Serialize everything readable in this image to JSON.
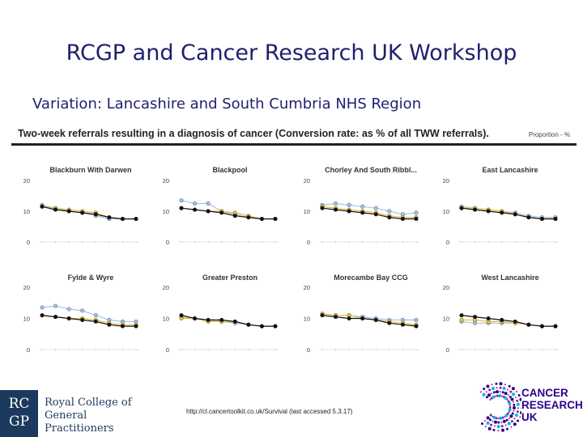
{
  "slide": {
    "title": "RCGP and Cancer Research UK Workshop",
    "subtitle": "Variation: Lancashire and South Cumbria NHS Region"
  },
  "chart_header": {
    "title": "Two-week referrals resulting in a diagnosis of cancer (Conversion rate: as % of all TWW referrals).",
    "proportion_label": "Proportion - %"
  },
  "footer": {
    "url": "http://cl.cancertoolkit.co.uk/Survival (last accessed 5.3.17)"
  },
  "logos": {
    "rcgp_letters": [
      "RC",
      "GP"
    ],
    "rcgp_name_line1": "Royal College of",
    "rcgp_name_line2": "General Practitioners",
    "cruk_line1": "CANCER",
    "cruk_line2": "RESEARCH",
    "cruk_line3": "UK"
  },
  "colors": {
    "black_series": "#111111",
    "blue_series": "#a9c4e0",
    "yellow_series": "#e8c04a",
    "title_blue": "#1f1f6e"
  },
  "chart_data": {
    "type": "line",
    "title": "Two-week referrals resulting in a diagnosis of cancer (Conversion rate: as % of all TWW referrals).",
    "ylabel": "Proportion - %",
    "ylim": [
      0,
      20
    ],
    "yticks": [
      "0",
      "10",
      "20"
    ],
    "grid": false,
    "point_count": 8,
    "panels": [
      {
        "name": "Blackburn With Darwen",
        "series": [
          {
            "name": "black",
            "values": [
              11.5,
              10.5,
              10,
              9.5,
              9,
              8,
              7.5,
              7.5
            ]
          },
          {
            "name": "blue",
            "values": [
              12,
              11,
              10,
              9.5,
              8.5,
              7.5,
              7.5,
              7.5
            ]
          },
          {
            "name": "yellow",
            "values": [
              11.5,
              11,
              10.5,
              10,
              9.5,
              8,
              7.5,
              7.5
            ]
          }
        ]
      },
      {
        "name": "Blackpool",
        "series": [
          {
            "name": "black",
            "values": [
              11,
              10.5,
              10,
              9.5,
              8.5,
              8,
              7.5,
              7.5
            ]
          },
          {
            "name": "blue",
            "values": [
              13.5,
              12.5,
              12.5,
              10,
              9,
              8,
              7.5,
              7.5
            ]
          },
          {
            "name": "yellow",
            "values": [
              11,
              10.5,
              10,
              10,
              9.5,
              8.5,
              7.5,
              7.5
            ]
          }
        ]
      },
      {
        "name": "Chorley And South Ribbl...",
        "series": [
          {
            "name": "black",
            "values": [
              11,
              10.5,
              10,
              9.5,
              9,
              8,
              7.5,
              7.5
            ]
          },
          {
            "name": "blue",
            "values": [
              12,
              12.5,
              12,
              11.5,
              11,
              10,
              9,
              9.5
            ]
          },
          {
            "name": "yellow",
            "values": [
              11.5,
              11,
              10.5,
              10,
              9.5,
              8.5,
              8,
              8
            ]
          }
        ]
      },
      {
        "name": "East Lancashire",
        "series": [
          {
            "name": "black",
            "values": [
              11,
              10.5,
              10,
              9.5,
              9,
              8,
              7.5,
              7.5
            ]
          },
          {
            "name": "blue",
            "values": [
              11.5,
              11,
              10.5,
              10,
              9.5,
              8.5,
              8,
              8
            ]
          },
          {
            "name": "yellow",
            "values": [
              11,
              11,
              10.5,
              10,
              9,
              8,
              7.5,
              7.5
            ]
          }
        ]
      },
      {
        "name": "Fylde & Wyre",
        "series": [
          {
            "name": "black",
            "values": [
              11,
              10.5,
              10,
              9.5,
              9,
              8,
              7.5,
              7.5
            ]
          },
          {
            "name": "blue",
            "values": [
              13.5,
              14,
              13,
              12.5,
              11,
              9.5,
              9,
              9
            ]
          },
          {
            "name": "yellow",
            "values": [
              11,
              10.5,
              10,
              10,
              9.5,
              8.5,
              8,
              8
            ]
          }
        ]
      },
      {
        "name": "Greater Preston",
        "series": [
          {
            "name": "black",
            "values": [
              11,
              10,
              9.5,
              9.5,
              9,
              8,
              7.5,
              7.5
            ]
          },
          {
            "name": "blue",
            "values": [
              10.5,
              10,
              9.5,
              9,
              8.5,
              8,
              7.5,
              7.5
            ]
          },
          {
            "name": "yellow",
            "values": [
              10,
              10,
              9,
              9,
              9,
              8,
              7.5,
              7.5
            ]
          }
        ]
      },
      {
        "name": "Morecambe Bay CCG",
        "series": [
          {
            "name": "black",
            "values": [
              11,
              10.5,
              10,
              10,
              9.5,
              8.5,
              8,
              7.5
            ]
          },
          {
            "name": "blue",
            "values": [
              11.5,
              11,
              11,
              10.5,
              10,
              9.5,
              9.5,
              9.5
            ]
          },
          {
            "name": "yellow",
            "values": [
              11.5,
              11,
              11,
              10,
              9.5,
              9,
              8.5,
              8
            ]
          }
        ]
      },
      {
        "name": "West Lancashire",
        "series": [
          {
            "name": "black",
            "values": [
              11,
              10.5,
              10,
              9.5,
              9,
              8,
              7.5,
              7.5
            ]
          },
          {
            "name": "blue",
            "values": [
              9,
              8.5,
              8.5,
              8.5,
              8.5,
              8,
              7.5,
              7.5
            ]
          },
          {
            "name": "yellow",
            "values": [
              9.5,
              9.5,
              9,
              9,
              8.5,
              8,
              7.5,
              7.5
            ]
          }
        ]
      }
    ]
  }
}
